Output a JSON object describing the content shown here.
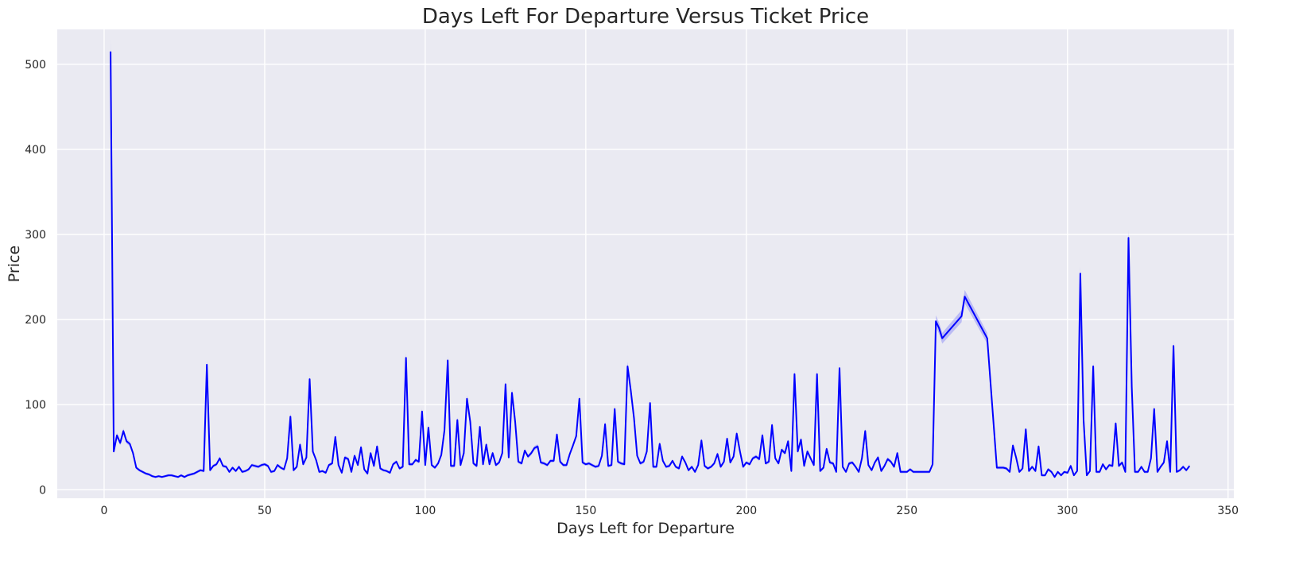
{
  "chart_data": {
    "type": "line",
    "title": "Days Left For Departure Versus Ticket Price",
    "xlabel": "Days Left for Departure",
    "ylabel": "Price",
    "xlim": [
      -14.6,
      351.8
    ],
    "ylim": [
      -10,
      541
    ],
    "x_ticks": [
      0,
      50,
      100,
      150,
      200,
      250,
      300,
      350
    ],
    "y_ticks": [
      0,
      100,
      200,
      300,
      400,
      500
    ],
    "grid": true,
    "legend": "none",
    "colors": {
      "line": "#0000ff",
      "band": "#0000ff",
      "background": "#eaeaf2",
      "grid": "#ffffff"
    },
    "series": [
      {
        "points": [
          [
            2,
            515
          ],
          [
            3,
            45
          ],
          [
            4,
            64
          ],
          [
            5,
            55
          ],
          [
            6,
            69
          ],
          [
            7,
            57
          ],
          [
            8,
            54
          ],
          [
            9,
            43
          ],
          [
            10,
            26
          ],
          [
            11,
            23
          ],
          [
            12,
            21
          ],
          [
            13,
            19
          ],
          [
            14,
            18
          ],
          [
            15,
            16
          ],
          [
            16,
            15
          ],
          [
            17,
            16
          ],
          [
            18,
            15
          ],
          [
            19,
            16
          ],
          [
            20,
            17
          ],
          [
            21,
            17
          ],
          [
            22,
            16
          ],
          [
            23,
            15
          ],
          [
            24,
            17
          ],
          [
            25,
            15
          ],
          [
            26,
            17
          ],
          [
            27,
            18
          ],
          [
            28,
            19
          ],
          [
            29,
            21
          ],
          [
            30,
            23
          ],
          [
            31,
            22
          ],
          [
            32,
            147
          ],
          [
            33,
            23
          ],
          [
            34,
            28
          ],
          [
            35,
            30
          ],
          [
            36,
            37
          ],
          [
            37,
            28
          ],
          [
            38,
            27
          ],
          [
            39,
            21
          ],
          [
            40,
            26
          ],
          [
            41,
            22
          ],
          [
            42,
            27
          ],
          [
            43,
            21
          ],
          [
            44,
            22
          ],
          [
            45,
            24
          ],
          [
            46,
            29
          ],
          [
            47,
            28
          ],
          [
            48,
            27
          ],
          [
            49,
            29
          ],
          [
            50,
            30
          ],
          [
            51,
            28
          ],
          [
            52,
            21
          ],
          [
            53,
            22
          ],
          [
            54,
            29
          ],
          [
            55,
            26
          ],
          [
            56,
            24
          ],
          [
            57,
            37
          ],
          [
            58,
            86
          ],
          [
            59,
            23
          ],
          [
            60,
            27
          ],
          [
            61,
            53
          ],
          [
            62,
            30
          ],
          [
            63,
            38
          ],
          [
            64,
            130
          ],
          [
            65,
            45
          ],
          [
            66,
            35
          ],
          [
            67,
            21
          ],
          [
            68,
            22
          ],
          [
            69,
            20
          ],
          [
            70,
            29
          ],
          [
            71,
            31
          ],
          [
            72,
            62
          ],
          [
            73,
            29
          ],
          [
            74,
            20
          ],
          [
            75,
            38
          ],
          [
            76,
            36
          ],
          [
            77,
            21
          ],
          [
            78,
            40
          ],
          [
            79,
            29
          ],
          [
            80,
            50
          ],
          [
            81,
            24
          ],
          [
            82,
            19
          ],
          [
            83,
            43
          ],
          [
            84,
            28
          ],
          [
            85,
            51
          ],
          [
            86,
            25
          ],
          [
            87,
            23
          ],
          [
            88,
            22
          ],
          [
            89,
            20
          ],
          [
            90,
            30
          ],
          [
            91,
            33
          ],
          [
            92,
            25
          ],
          [
            93,
            27
          ],
          [
            94,
            155
          ],
          [
            95,
            30
          ],
          [
            96,
            30
          ],
          [
            97,
            35
          ],
          [
            98,
            33
          ],
          [
            99,
            92
          ],
          [
            100,
            29
          ],
          [
            101,
            73
          ],
          [
            102,
            29
          ],
          [
            103,
            26
          ],
          [
            104,
            31
          ],
          [
            105,
            41
          ],
          [
            106,
            70
          ],
          [
            107,
            152
          ],
          [
            108,
            28
          ],
          [
            109,
            28
          ],
          [
            110,
            82
          ],
          [
            111,
            29
          ],
          [
            112,
            43
          ],
          [
            113,
            107
          ],
          [
            114,
            80
          ],
          [
            115,
            31
          ],
          [
            116,
            28
          ],
          [
            117,
            74
          ],
          [
            118,
            30
          ],
          [
            119,
            53
          ],
          [
            120,
            30
          ],
          [
            121,
            43
          ],
          [
            122,
            29
          ],
          [
            123,
            32
          ],
          [
            124,
            43
          ],
          [
            125,
            124
          ],
          [
            126,
            38
          ],
          [
            127,
            114
          ],
          [
            128,
            80
          ],
          [
            129,
            33
          ],
          [
            130,
            31
          ],
          [
            131,
            46
          ],
          [
            132,
            39
          ],
          [
            133,
            43
          ],
          [
            134,
            49
          ],
          [
            135,
            51
          ],
          [
            136,
            32
          ],
          [
            137,
            31
          ],
          [
            138,
            29
          ],
          [
            139,
            34
          ],
          [
            140,
            34
          ],
          [
            141,
            65
          ],
          [
            142,
            33
          ],
          [
            143,
            29
          ],
          [
            144,
            29
          ],
          [
            145,
            42
          ],
          [
            146,
            52
          ],
          [
            147,
            63
          ],
          [
            148,
            107
          ],
          [
            149,
            32
          ],
          [
            150,
            30
          ],
          [
            151,
            31
          ],
          [
            152,
            29
          ],
          [
            153,
            27
          ],
          [
            154,
            28
          ],
          [
            155,
            40
          ],
          [
            156,
            77
          ],
          [
            157,
            28
          ],
          [
            158,
            29
          ],
          [
            159,
            95
          ],
          [
            160,
            33
          ],
          [
            161,
            31
          ],
          [
            162,
            30
          ],
          [
            163,
            145
          ],
          [
            164,
            117
          ],
          [
            165,
            84
          ],
          [
            166,
            40
          ],
          [
            167,
            31
          ],
          [
            168,
            33
          ],
          [
            169,
            45
          ],
          [
            170,
            102
          ],
          [
            171,
            27
          ],
          [
            172,
            27
          ],
          [
            173,
            54
          ],
          [
            174,
            34
          ],
          [
            175,
            27
          ],
          [
            176,
            28
          ],
          [
            177,
            34
          ],
          [
            178,
            27
          ],
          [
            179,
            25
          ],
          [
            180,
            39
          ],
          [
            181,
            32
          ],
          [
            182,
            23
          ],
          [
            183,
            27
          ],
          [
            184,
            21
          ],
          [
            185,
            29
          ],
          [
            186,
            58
          ],
          [
            187,
            28
          ],
          [
            188,
            25
          ],
          [
            189,
            27
          ],
          [
            190,
            31
          ],
          [
            191,
            42
          ],
          [
            192,
            27
          ],
          [
            193,
            33
          ],
          [
            194,
            60
          ],
          [
            195,
            32
          ],
          [
            196,
            39
          ],
          [
            197,
            66
          ],
          [
            198,
            45
          ],
          [
            199,
            27
          ],
          [
            200,
            32
          ],
          [
            201,
            30
          ],
          [
            202,
            37
          ],
          [
            203,
            39
          ],
          [
            204,
            36
          ],
          [
            205,
            64
          ],
          [
            206,
            31
          ],
          [
            207,
            33
          ],
          [
            208,
            76
          ],
          [
            209,
            37
          ],
          [
            210,
            31
          ],
          [
            211,
            47
          ],
          [
            212,
            43
          ],
          [
            213,
            57
          ],
          [
            214,
            22
          ],
          [
            215,
            136
          ],
          [
            216,
            45
          ],
          [
            217,
            59
          ],
          [
            218,
            28
          ],
          [
            219,
            45
          ],
          [
            220,
            37
          ],
          [
            221,
            29
          ],
          [
            222,
            136
          ],
          [
            223,
            22
          ],
          [
            224,
            26
          ],
          [
            225,
            48
          ],
          [
            226,
            32
          ],
          [
            227,
            31
          ],
          [
            228,
            21
          ],
          [
            229,
            143
          ],
          [
            230,
            27
          ],
          [
            231,
            21
          ],
          [
            232,
            31
          ],
          [
            233,
            32
          ],
          [
            234,
            27
          ],
          [
            235,
            21
          ],
          [
            236,
            37
          ],
          [
            237,
            69
          ],
          [
            238,
            29
          ],
          [
            239,
            23
          ],
          [
            240,
            32
          ],
          [
            241,
            38
          ],
          [
            242,
            22
          ],
          [
            243,
            28
          ],
          [
            244,
            36
          ],
          [
            245,
            33
          ],
          [
            246,
            27
          ],
          [
            247,
            43
          ],
          [
            248,
            21
          ],
          [
            249,
            21
          ],
          [
            250,
            21
          ],
          [
            251,
            24
          ],
          [
            252,
            21
          ],
          [
            253,
            21
          ],
          [
            254,
            21
          ],
          [
            255,
            21
          ],
          [
            256,
            21
          ],
          [
            257,
            21
          ],
          [
            258,
            30
          ],
          [
            259,
            198
          ],
          [
            260,
            190
          ],
          [
            261,
            178
          ],
          [
            267,
            204
          ],
          [
            268,
            227
          ],
          [
            275,
            178
          ],
          [
            278,
            26
          ],
          [
            279,
            26
          ],
          [
            280,
            26
          ],
          [
            281,
            25
          ],
          [
            282,
            21
          ],
          [
            283,
            52
          ],
          [
            284,
            38
          ],
          [
            285,
            21
          ],
          [
            286,
            25
          ],
          [
            287,
            71
          ],
          [
            288,
            22
          ],
          [
            289,
            27
          ],
          [
            290,
            22
          ],
          [
            291,
            51
          ],
          [
            292,
            17
          ],
          [
            293,
            17
          ],
          [
            294,
            24
          ],
          [
            295,
            21
          ],
          [
            296,
            15
          ],
          [
            297,
            21
          ],
          [
            298,
            17
          ],
          [
            299,
            21
          ],
          [
            300,
            20
          ],
          [
            301,
            28
          ],
          [
            302,
            17
          ],
          [
            303,
            22
          ],
          [
            304,
            254
          ],
          [
            305,
            82
          ],
          [
            306,
            17
          ],
          [
            307,
            22
          ],
          [
            308,
            145
          ],
          [
            309,
            21
          ],
          [
            310,
            21
          ],
          [
            311,
            30
          ],
          [
            312,
            24
          ],
          [
            313,
            29
          ],
          [
            314,
            28
          ],
          [
            315,
            78
          ],
          [
            316,
            28
          ],
          [
            317,
            32
          ],
          [
            318,
            21
          ],
          [
            319,
            296
          ],
          [
            320,
            121
          ],
          [
            321,
            21
          ],
          [
            322,
            21
          ],
          [
            323,
            27
          ],
          [
            324,
            21
          ],
          [
            325,
            21
          ],
          [
            326,
            37
          ],
          [
            327,
            95
          ],
          [
            328,
            21
          ],
          [
            329,
            27
          ],
          [
            330,
            32
          ],
          [
            331,
            57
          ],
          [
            332,
            21
          ],
          [
            333,
            169
          ],
          [
            334,
            21
          ],
          [
            335,
            23
          ],
          [
            336,
            27
          ],
          [
            337,
            23
          ],
          [
            338,
            28
          ]
        ]
      }
    ]
  }
}
